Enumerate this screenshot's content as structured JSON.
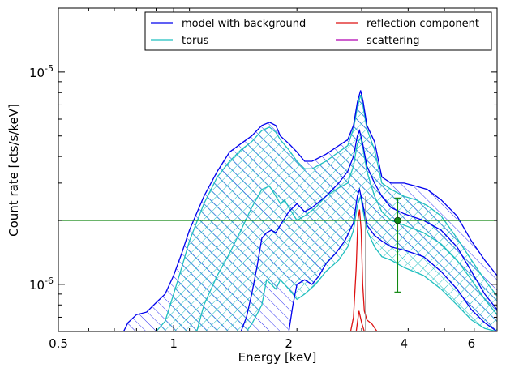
{
  "chart_data": {
    "type": "line",
    "title": "",
    "xlabel": "Energy [keV]",
    "ylabel": "Count rate [cts/s/keV]",
    "x_scale": "log",
    "y_scale": "log",
    "xlim": [
      0.5,
      7.0
    ],
    "ylim": [
      6e-07,
      2e-05
    ],
    "grid": false,
    "legend_placement": "top-right",
    "legend_columns": 2,
    "x_ticks": [
      {
        "value": 0.5,
        "label": "0.5"
      },
      {
        "value": 1,
        "label": "1"
      },
      {
        "value": 2,
        "label": "2"
      },
      {
        "value": 4,
        "label": "4"
      },
      {
        "value": 6,
        "label": "6"
      }
    ],
    "y_ticks": [
      {
        "value": 1e-06,
        "base": "10",
        "exp": "-6"
      },
      {
        "value": 1e-05,
        "base": "10",
        "exp": "-5"
      }
    ],
    "colors": {
      "model": "#0000ee",
      "torus": "#1fbfbf",
      "reflection": "#dd1111",
      "scattering": "#b000b0",
      "data": "#118811"
    },
    "series": [
      {
        "name": "model with background",
        "color": "#0000ee",
        "band": "hatch-diagonal",
        "upper": [
          [
            0.74,
            6e-07
          ],
          [
            0.76,
            6.6e-07
          ],
          [
            0.8,
            7.2e-07
          ],
          [
            0.85,
            7.4e-07
          ],
          [
            0.9,
            8.2e-07
          ],
          [
            0.95,
            9e-07
          ],
          [
            1.0,
            1.1e-06
          ],
          [
            1.05,
            1.4e-06
          ],
          [
            1.1,
            1.8e-06
          ],
          [
            1.2,
            2.6e-06
          ],
          [
            1.3,
            3.4e-06
          ],
          [
            1.4,
            4.2e-06
          ],
          [
            1.5,
            4.6e-06
          ],
          [
            1.6,
            5e-06
          ],
          [
            1.7,
            5.6e-06
          ],
          [
            1.78,
            5.8e-06
          ],
          [
            1.85,
            5.6e-06
          ],
          [
            1.9,
            5e-06
          ],
          [
            2.0,
            4.6e-06
          ],
          [
            2.1,
            4.2e-06
          ],
          [
            2.2,
            3.8e-06
          ],
          [
            2.3,
            3.8e-06
          ],
          [
            2.5,
            4.1e-06
          ],
          [
            2.7,
            4.5e-06
          ],
          [
            2.85,
            4.8e-06
          ],
          [
            2.95,
            5.6e-06
          ],
          [
            3.02,
            7.2e-06
          ],
          [
            3.08,
            8.2e-06
          ],
          [
            3.13,
            7.2e-06
          ],
          [
            3.2,
            5.6e-06
          ],
          [
            3.35,
            4.7e-06
          ],
          [
            3.5,
            3.2e-06
          ],
          [
            3.7,
            3e-06
          ],
          [
            4.0,
            3e-06
          ],
          [
            4.3,
            2.9e-06
          ],
          [
            4.6,
            2.8e-06
          ],
          [
            5.0,
            2.5e-06
          ],
          [
            5.5,
            2.1e-06
          ],
          [
            6.0,
            1.6e-06
          ],
          [
            6.5,
            1.3e-06
          ],
          [
            7.0,
            1.1e-06
          ]
        ],
        "mid": [
          [
            1.5,
            6e-07
          ],
          [
            1.55,
            7e-07
          ],
          [
            1.6,
            9e-07
          ],
          [
            1.65,
            1.2e-06
          ],
          [
            1.7,
            1.65e-06
          ],
          [
            1.75,
            1.75e-06
          ],
          [
            1.8,
            1.8e-06
          ],
          [
            1.85,
            1.75e-06
          ],
          [
            1.9,
            1.9e-06
          ],
          [
            2.0,
            2.2e-06
          ],
          [
            2.1,
            2.4e-06
          ],
          [
            2.2,
            2.2e-06
          ],
          [
            2.3,
            2.3e-06
          ],
          [
            2.5,
            2.6e-06
          ],
          [
            2.7,
            3e-06
          ],
          [
            2.85,
            3.4e-06
          ],
          [
            2.95,
            4e-06
          ],
          [
            3.02,
            5e-06
          ],
          [
            3.06,
            5.3e-06
          ],
          [
            3.12,
            4.6e-06
          ],
          [
            3.2,
            3.6e-06
          ],
          [
            3.35,
            3e-06
          ],
          [
            3.5,
            2.6e-06
          ],
          [
            3.7,
            2.3e-06
          ],
          [
            4.0,
            2.15e-06
          ],
          [
            4.5,
            2e-06
          ],
          [
            5.0,
            1.8e-06
          ],
          [
            5.5,
            1.5e-06
          ],
          [
            6.0,
            1.15e-06
          ],
          [
            6.5,
            9e-07
          ],
          [
            7.0,
            7.6e-07
          ]
        ],
        "lower": [
          [
            2.0,
            6e-07
          ],
          [
            2.05,
            8e-07
          ],
          [
            2.1,
            1e-06
          ],
          [
            2.2,
            1.05e-06
          ],
          [
            2.3,
            1e-06
          ],
          [
            2.4,
            1.1e-06
          ],
          [
            2.5,
            1.25e-06
          ],
          [
            2.65,
            1.4e-06
          ],
          [
            2.8,
            1.6e-06
          ],
          [
            2.95,
            1.95e-06
          ],
          [
            3.02,
            2.6e-06
          ],
          [
            3.06,
            2.8e-06
          ],
          [
            3.12,
            2.4e-06
          ],
          [
            3.2,
            1.9e-06
          ],
          [
            3.35,
            1.7e-06
          ],
          [
            3.5,
            1.6e-06
          ],
          [
            3.7,
            1.5e-06
          ],
          [
            4.0,
            1.45e-06
          ],
          [
            4.5,
            1.35e-06
          ],
          [
            5.0,
            1.15e-06
          ],
          [
            5.5,
            9.5e-07
          ],
          [
            6.0,
            7.6e-07
          ],
          [
            6.5,
            6.6e-07
          ],
          [
            7.0,
            6e-07
          ]
        ]
      },
      {
        "name": "reflection component",
        "color": "#dd1111",
        "upper": [
          [
            2.9,
            6e-07
          ],
          [
            2.95,
            7e-07
          ],
          [
            3.0,
            1.2e-06
          ],
          [
            3.03,
            2e-06
          ],
          [
            3.06,
            2.25e-06
          ],
          [
            3.09,
            1.8e-06
          ],
          [
            3.12,
            1e-06
          ],
          [
            3.15,
            7.5e-07
          ],
          [
            3.2,
            6.8e-07
          ],
          [
            3.3,
            6.5e-07
          ],
          [
            3.4,
            6e-07
          ]
        ],
        "lower": [
          [
            3.0,
            6e-07
          ],
          [
            3.05,
            7.5e-07
          ],
          [
            3.1,
            6.6e-07
          ],
          [
            3.15,
            6e-07
          ]
        ]
      },
      {
        "name": "torus",
        "color": "#1fbfbf",
        "band": "hatch-cross",
        "upper": [
          [
            0.9,
            6e-07
          ],
          [
            0.95,
            6.7e-07
          ],
          [
            1.0,
            9e-07
          ],
          [
            1.05,
            1.2e-06
          ],
          [
            1.1,
            1.6e-06
          ],
          [
            1.2,
            2.4e-06
          ],
          [
            1.3,
            3.2e-06
          ],
          [
            1.4,
            3.8e-06
          ],
          [
            1.5,
            4.3e-06
          ],
          [
            1.6,
            4.7e-06
          ],
          [
            1.7,
            5.3e-06
          ],
          [
            1.78,
            5.5e-06
          ],
          [
            1.85,
            5.2e-06
          ],
          [
            1.9,
            4.8e-06
          ],
          [
            2.0,
            4.3e-06
          ],
          [
            2.1,
            3.8e-06
          ],
          [
            2.2,
            3.5e-06
          ],
          [
            2.3,
            3.5e-06
          ],
          [
            2.5,
            3.8e-06
          ],
          [
            2.7,
            4.2e-06
          ],
          [
            2.85,
            4.5e-06
          ],
          [
            2.95,
            5.4e-06
          ],
          [
            3.02,
            6.8e-06
          ],
          [
            3.08,
            7.8e-06
          ],
          [
            3.13,
            6.8e-06
          ],
          [
            3.2,
            5.4e-06
          ],
          [
            3.35,
            4.3e-06
          ],
          [
            3.5,
            3e-06
          ],
          [
            3.7,
            2.8e-06
          ],
          [
            4.0,
            2.6e-06
          ],
          [
            4.3,
            2.5e-06
          ],
          [
            4.6,
            2.35e-06
          ],
          [
            5.0,
            2.1e-06
          ],
          [
            5.5,
            1.65e-06
          ],
          [
            6.0,
            1.3e-06
          ],
          [
            6.5,
            1.05e-06
          ],
          [
            7.0,
            8.8e-07
          ]
        ],
        "mid": [
          [
            1.15,
            6e-07
          ],
          [
            1.2,
            8e-07
          ],
          [
            1.3,
            1.1e-06
          ],
          [
            1.4,
            1.4e-06
          ],
          [
            1.5,
            1.8e-06
          ],
          [
            1.6,
            2.3e-06
          ],
          [
            1.7,
            2.8e-06
          ],
          [
            1.78,
            2.9e-06
          ],
          [
            1.85,
            2.6e-06
          ],
          [
            1.9,
            2.4e-06
          ],
          [
            1.95,
            2.5e-06
          ],
          [
            2.0,
            2.3e-06
          ],
          [
            2.1,
            2e-06
          ],
          [
            2.2,
            2.1e-06
          ],
          [
            2.35,
            2.3e-06
          ],
          [
            2.5,
            2.6e-06
          ],
          [
            2.7,
            2.85e-06
          ],
          [
            2.85,
            3e-06
          ],
          [
            2.95,
            3.6e-06
          ],
          [
            3.02,
            4.6e-06
          ],
          [
            3.08,
            4.9e-06
          ],
          [
            3.13,
            4.3e-06
          ],
          [
            3.2,
            3.4e-06
          ],
          [
            3.35,
            2.6e-06
          ],
          [
            3.5,
            2.2e-06
          ],
          [
            3.7,
            2e-06
          ],
          [
            4.0,
            1.9e-06
          ],
          [
            4.5,
            1.75e-06
          ],
          [
            5.0,
            1.55e-06
          ],
          [
            5.5,
            1.3e-06
          ],
          [
            6.0,
            1.05e-06
          ],
          [
            6.5,
            8.5e-07
          ],
          [
            7.0,
            7.2e-07
          ]
        ],
        "lower": [
          [
            1.55,
            6e-07
          ],
          [
            1.6,
            6.5e-07
          ],
          [
            1.7,
            8e-07
          ],
          [
            1.75,
            1.05e-06
          ],
          [
            1.8,
            1e-06
          ],
          [
            1.85,
            9.5e-07
          ],
          [
            1.9,
            1.05e-06
          ],
          [
            2.0,
            9.5e-07
          ],
          [
            2.05,
            9e-07
          ],
          [
            2.1,
            8.5e-07
          ],
          [
            2.2,
            9e-07
          ],
          [
            2.35,
            1e-06
          ],
          [
            2.5,
            1.15e-06
          ],
          [
            2.7,
            1.3e-06
          ],
          [
            2.85,
            1.5e-06
          ],
          [
            2.95,
            1.8e-06
          ],
          [
            3.02,
            2.35e-06
          ],
          [
            3.08,
            2.6e-06
          ],
          [
            3.13,
            2.2e-06
          ],
          [
            3.2,
            1.8e-06
          ],
          [
            3.35,
            1.5e-06
          ],
          [
            3.5,
            1.35e-06
          ],
          [
            3.7,
            1.3e-06
          ],
          [
            4.0,
            1.2e-06
          ],
          [
            4.5,
            1.1e-06
          ],
          [
            5.0,
            9.5e-07
          ],
          [
            5.5,
            8e-07
          ],
          [
            6.0,
            6.8e-07
          ],
          [
            6.5,
            6.2e-07
          ],
          [
            7.0,
            6e-07
          ]
        ]
      },
      {
        "name": "scattering",
        "color": "#b000b0",
        "upper": [],
        "lower": []
      }
    ],
    "data_points": [
      {
        "x": 3.85,
        "y": 2e-06,
        "yerr_low": 9.2e-07,
        "yerr_high": 2.55e-06
      }
    ],
    "horizontal_line": {
      "y": 2e-06,
      "color": "#118811"
    }
  }
}
